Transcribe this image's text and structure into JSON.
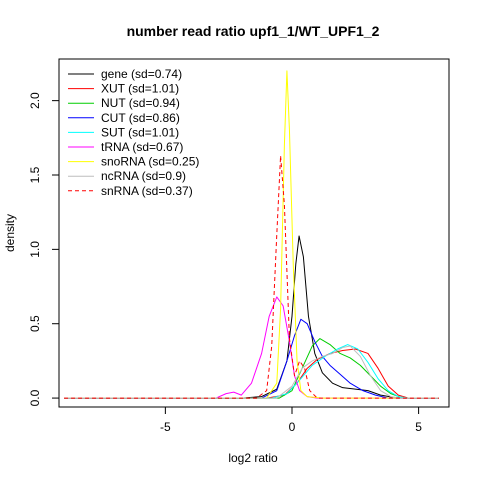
{
  "chart_data": {
    "type": "line",
    "title": "number read ratio upf1_1/WT_UPF1_2",
    "xlabel": "log2 ratio",
    "ylabel": "density",
    "xlim": [
      -9.2,
      6.2
    ],
    "ylim": [
      -0.06,
      2.28
    ],
    "x_ticks": [
      -5,
      0,
      5
    ],
    "x_tick_labels": [
      "-5",
      "0",
      "5"
    ],
    "y_ticks": [
      0.0,
      0.5,
      1.0,
      1.5,
      2.0
    ],
    "y_tick_labels": [
      "0.0",
      "0.5",
      "1.0",
      "1.5",
      "2.0"
    ],
    "grid": false,
    "legend_position": "top-left",
    "series": [
      {
        "name": "gene (sd=0.74)",
        "color": "#000000",
        "dash": "solid",
        "points": [
          [
            -9.0,
            0
          ],
          [
            -2.0,
            0
          ],
          [
            -1.2,
            0.01
          ],
          [
            -0.6,
            0.06
          ],
          [
            -0.2,
            0.25
          ],
          [
            0.0,
            0.55
          ],
          [
            0.15,
            0.9
          ],
          [
            0.28,
            1.09
          ],
          [
            0.45,
            0.95
          ],
          [
            0.65,
            0.55
          ],
          [
            0.9,
            0.3
          ],
          [
            1.2,
            0.17
          ],
          [
            1.6,
            0.1
          ],
          [
            2.0,
            0.07
          ],
          [
            2.5,
            0.06
          ],
          [
            3.0,
            0.05
          ],
          [
            3.5,
            0.02
          ],
          [
            4.0,
            0.005
          ],
          [
            4.5,
            0
          ],
          [
            5.8,
            0
          ]
        ]
      },
      {
        "name": "XUT (sd=1.01)",
        "color": "#ff0000",
        "dash": "solid",
        "points": [
          [
            -9.0,
            0
          ],
          [
            -1.0,
            0
          ],
          [
            -0.3,
            0.02
          ],
          [
            0.2,
            0.1
          ],
          [
            0.6,
            0.2
          ],
          [
            1.0,
            0.26
          ],
          [
            1.5,
            0.3
          ],
          [
            2.0,
            0.32
          ],
          [
            2.5,
            0.33
          ],
          [
            3.0,
            0.3
          ],
          [
            3.4,
            0.2
          ],
          [
            3.8,
            0.08
          ],
          [
            4.2,
            0.02
          ],
          [
            4.6,
            0
          ],
          [
            5.8,
            0
          ]
        ]
      },
      {
        "name": "NUT (sd=0.94)",
        "color": "#00cd00",
        "dash": "solid",
        "points": [
          [
            -9.0,
            0
          ],
          [
            -0.5,
            0
          ],
          [
            0.0,
            0.05
          ],
          [
            0.4,
            0.2
          ],
          [
            0.8,
            0.35
          ],
          [
            1.1,
            0.4
          ],
          [
            1.5,
            0.36
          ],
          [
            1.9,
            0.3
          ],
          [
            2.3,
            0.27
          ],
          [
            2.7,
            0.22
          ],
          [
            3.1,
            0.15
          ],
          [
            3.5,
            0.08
          ],
          [
            3.9,
            0.03
          ],
          [
            4.3,
            0.005
          ],
          [
            4.6,
            0
          ],
          [
            5.8,
            0
          ]
        ]
      },
      {
        "name": "CUT (sd=0.86)",
        "color": "#0000ff",
        "dash": "solid",
        "points": [
          [
            -9.0,
            0
          ],
          [
            -1.2,
            0
          ],
          [
            -0.6,
            0.05
          ],
          [
            -0.2,
            0.25
          ],
          [
            0.1,
            0.42
          ],
          [
            0.35,
            0.53
          ],
          [
            0.6,
            0.5
          ],
          [
            0.9,
            0.38
          ],
          [
            1.2,
            0.28
          ],
          [
            1.5,
            0.22
          ],
          [
            1.9,
            0.16
          ],
          [
            2.3,
            0.1
          ],
          [
            2.8,
            0.05
          ],
          [
            3.3,
            0.02
          ],
          [
            3.8,
            0
          ],
          [
            5.8,
            0
          ]
        ]
      },
      {
        "name": "SUT (sd=1.01)",
        "color": "#00ffff",
        "dash": "solid",
        "points": [
          [
            -9.0,
            0
          ],
          [
            -0.8,
            0
          ],
          [
            -0.2,
            0.03
          ],
          [
            0.3,
            0.12
          ],
          [
            0.8,
            0.22
          ],
          [
            1.3,
            0.28
          ],
          [
            1.8,
            0.33
          ],
          [
            2.2,
            0.36
          ],
          [
            2.6,
            0.33
          ],
          [
            3.0,
            0.24
          ],
          [
            3.4,
            0.13
          ],
          [
            3.8,
            0.05
          ],
          [
            4.2,
            0.01
          ],
          [
            4.6,
            0
          ],
          [
            5.8,
            0
          ]
        ]
      },
      {
        "name": "tRNA (sd=0.67)",
        "color": "#ff00ff",
        "dash": "solid",
        "points": [
          [
            -9.0,
            0
          ],
          [
            -3.0,
            0
          ],
          [
            -2.6,
            0.03
          ],
          [
            -2.3,
            0.04
          ],
          [
            -2.0,
            0.02
          ],
          [
            -1.6,
            0.1
          ],
          [
            -1.2,
            0.3
          ],
          [
            -0.9,
            0.55
          ],
          [
            -0.6,
            0.68
          ],
          [
            -0.35,
            0.62
          ],
          [
            -0.1,
            0.38
          ],
          [
            0.1,
            0.15
          ],
          [
            0.3,
            0.05
          ],
          [
            0.6,
            0.01
          ],
          [
            1.0,
            0
          ],
          [
            5.8,
            0
          ]
        ]
      },
      {
        "name": "snoRNA (sd=0.25)",
        "color": "#ffff00",
        "dash": "solid",
        "points": [
          [
            -9.0,
            0
          ],
          [
            -1.0,
            0
          ],
          [
            -0.6,
            0.1
          ],
          [
            -0.45,
            0.6
          ],
          [
            -0.3,
            1.7
          ],
          [
            -0.2,
            2.2
          ],
          [
            -0.1,
            1.8
          ],
          [
            0.05,
            0.9
          ],
          [
            0.2,
            0.25
          ],
          [
            0.35,
            0.05
          ],
          [
            0.6,
            0.01
          ],
          [
            1.2,
            0
          ],
          [
            5.8,
            0
          ]
        ]
      },
      {
        "name": "ncRNA (sd=0.9)",
        "color": "#bebebe",
        "dash": "solid",
        "points": [
          [
            -9.0,
            0
          ],
          [
            -0.6,
            0
          ],
          [
            0.0,
            0.08
          ],
          [
            0.4,
            0.2
          ],
          [
            0.8,
            0.25
          ],
          [
            1.2,
            0.28
          ],
          [
            1.6,
            0.3
          ],
          [
            2.0,
            0.34
          ],
          [
            2.3,
            0.35
          ],
          [
            2.7,
            0.28
          ],
          [
            3.1,
            0.15
          ],
          [
            3.5,
            0.05
          ],
          [
            3.9,
            0.01
          ],
          [
            4.3,
            0
          ],
          [
            5.8,
            0
          ]
        ]
      },
      {
        "name": "snRNA (sd=0.37)",
        "color": "#ff0000",
        "dash": "dashed",
        "points": [
          [
            -9.0,
            0
          ],
          [
            -1.4,
            0
          ],
          [
            -1.0,
            0.05
          ],
          [
            -0.8,
            0.35
          ],
          [
            -0.6,
            1.1
          ],
          [
            -0.45,
            1.63
          ],
          [
            -0.3,
            1.3
          ],
          [
            -0.1,
            0.4
          ],
          [
            0.1,
            0.15
          ],
          [
            0.3,
            0.25
          ],
          [
            0.5,
            0.2
          ],
          [
            0.7,
            0.05
          ],
          [
            1.0,
            0
          ],
          [
            5.8,
            0
          ]
        ]
      }
    ]
  }
}
